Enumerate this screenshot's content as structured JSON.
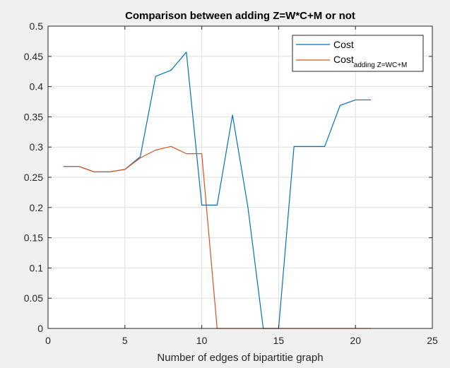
{
  "chart_data": {
    "type": "line",
    "title": "Comparison between adding Z=W*C+M or not",
    "xlabel": "Number of edges of bipartitie graph",
    "ylabel": "",
    "xlim": [
      0,
      25
    ],
    "ylim": [
      0,
      0.5
    ],
    "x_ticks": [
      0,
      5,
      10,
      15,
      20,
      25
    ],
    "y_ticks": [
      0,
      0.05,
      0.1,
      0.15,
      0.2,
      0.25,
      0.3,
      0.35,
      0.4,
      0.45,
      0.5
    ],
    "x_tick_labels": [
      "0",
      "5",
      "10",
      "15",
      "20",
      "25"
    ],
    "y_tick_labels": [
      "0",
      "0.05",
      "0.1",
      "0.15",
      "0.2",
      "0.25",
      "0.3",
      "0.35",
      "0.4",
      "0.45",
      "0.5"
    ],
    "grid": true,
    "legend_position": "top-right",
    "series": [
      {
        "name": "Cost",
        "color": "#0072bd",
        "x": [
          1,
          2,
          3,
          4,
          5,
          6,
          7,
          8,
          9,
          10,
          11,
          12,
          13,
          14,
          15,
          16,
          17,
          18,
          19,
          20,
          21
        ],
        "values": [
          0.268,
          0.268,
          0.259,
          0.259,
          0.263,
          0.284,
          0.417,
          0.427,
          0.457,
          0.204,
          0.204,
          0.353,
          0.201,
          0.0,
          0.0,
          0.301,
          0.301,
          0.301,
          0.369,
          0.378,
          0.378
        ]
      },
      {
        "name": "Cost",
        "name_subscript": "adding Z=WC+M",
        "color": "#d95319",
        "x": [
          1,
          2,
          3,
          4,
          5,
          6,
          7,
          8,
          9,
          10,
          11,
          12,
          13,
          14,
          15,
          16,
          17,
          18,
          19,
          20,
          21
        ],
        "values": [
          0.268,
          0.268,
          0.259,
          0.259,
          0.263,
          0.282,
          0.295,
          0.301,
          0.289,
          0.289,
          0.0,
          0.0,
          0.0,
          0.0,
          0.0,
          0.0,
          0.0,
          0.0,
          0.0,
          0.0,
          0.0
        ]
      }
    ]
  }
}
